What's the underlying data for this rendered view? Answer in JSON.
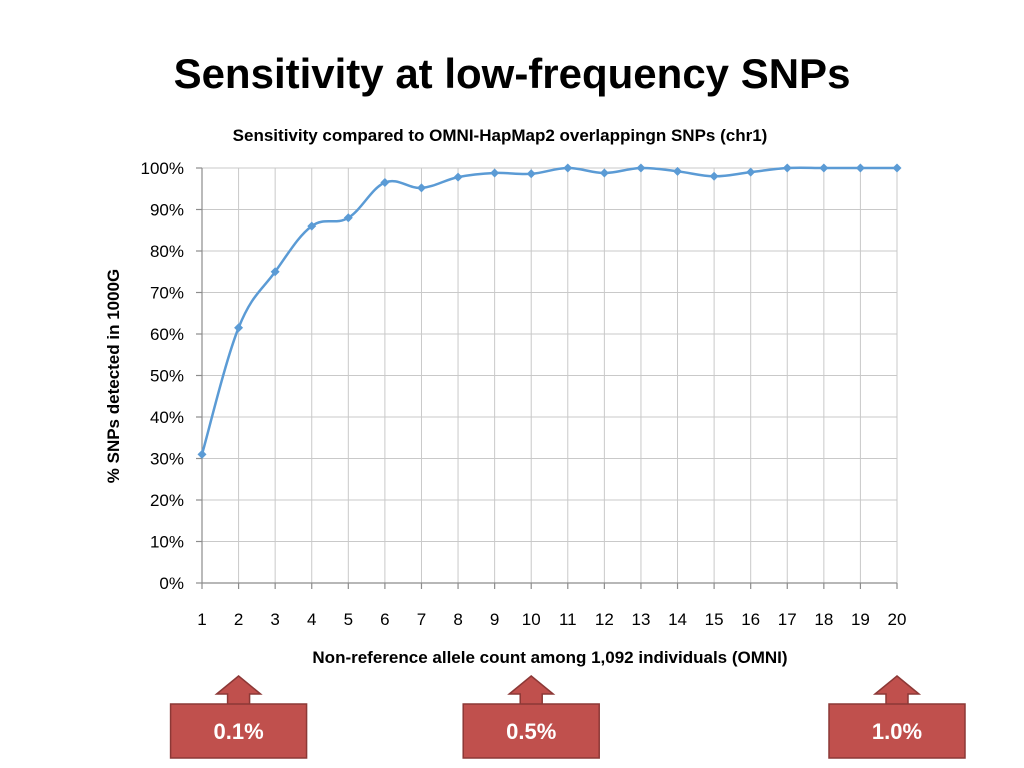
{
  "slide": {
    "title": "Sensitivity at low-frequency SNPs"
  },
  "colors": {
    "series": "#5b9bd5",
    "callout_fill": "#c0504d",
    "callout_stroke": "#8c3836"
  },
  "chart_data": {
    "type": "line",
    "title": "Sensitivity compared to OMNI-HapMap2 overlappingn SNPs (chr1)",
    "xlabel": "Non-reference allele count among 1,092 individuals (OMNI)",
    "ylabel": "% SNPs detected in 1000G",
    "categories": [
      "1",
      "2",
      "3",
      "4",
      "5",
      "6",
      "7",
      "8",
      "9",
      "10",
      "11",
      "12",
      "13",
      "14",
      "15",
      "16",
      "17",
      "18",
      "19",
      "20"
    ],
    "y_ticks": [
      "0%",
      "10%",
      "20%",
      "30%",
      "40%",
      "50%",
      "60%",
      "70%",
      "80%",
      "90%",
      "100%"
    ],
    "ylim": [
      0,
      100
    ],
    "grid": true,
    "marker": "diamond",
    "series": [
      {
        "values": [
          31,
          61.5,
          75,
          86,
          88,
          96.5,
          95.2,
          97.8,
          98.8,
          98.6,
          100,
          98.8,
          100,
          99.2,
          98,
          99,
          100,
          100,
          100,
          100
        ]
      }
    ]
  },
  "callouts": [
    {
      "label": "0.1%",
      "points_to": "2"
    },
    {
      "label": "0.5%",
      "points_to": "10"
    },
    {
      "label": "1.0%",
      "points_to": "20"
    }
  ]
}
